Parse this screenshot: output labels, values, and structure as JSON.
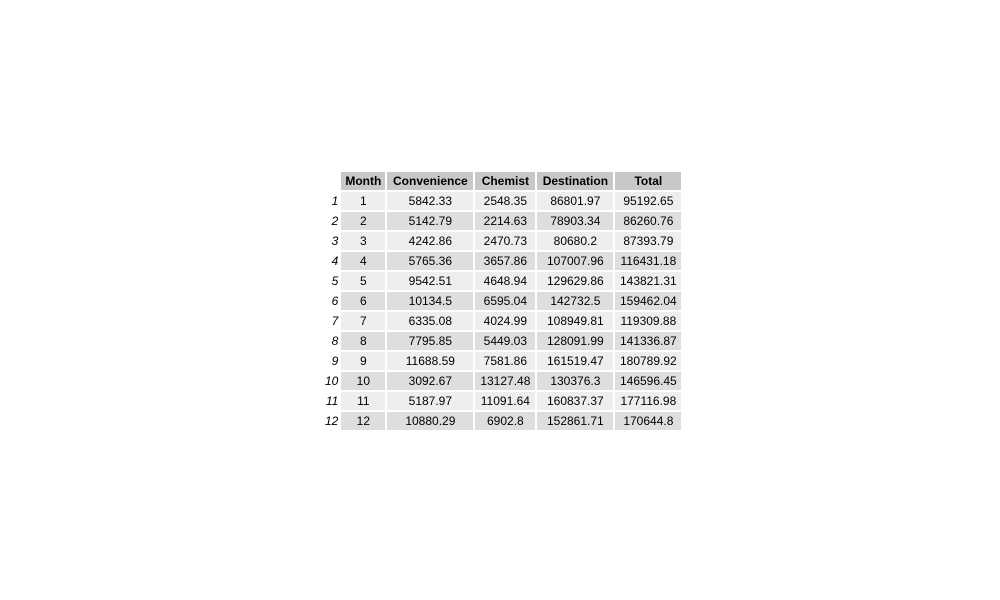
{
  "chart_data": {
    "type": "table",
    "columns": [
      "Month",
      "Convenience",
      "Chemist",
      "Destination",
      "Total"
    ],
    "row_names": [
      "1",
      "2",
      "3",
      "4",
      "5",
      "6",
      "7",
      "8",
      "9",
      "10",
      "11",
      "12"
    ],
    "rows": [
      [
        "1",
        "5842.33",
        "2548.35",
        "86801.97",
        "95192.65"
      ],
      [
        "2",
        "5142.79",
        "2214.63",
        "78903.34",
        "86260.76"
      ],
      [
        "3",
        "4242.86",
        "2470.73",
        "80680.2",
        "87393.79"
      ],
      [
        "4",
        "5765.36",
        "3657.86",
        "107007.96",
        "116431.18"
      ],
      [
        "5",
        "9542.51",
        "4648.94",
        "129629.86",
        "143821.31"
      ],
      [
        "6",
        "10134.5",
        "6595.04",
        "142732.5",
        "159462.04"
      ],
      [
        "7",
        "6335.08",
        "4024.99",
        "108949.81",
        "119309.88"
      ],
      [
        "8",
        "7795.85",
        "5449.03",
        "128091.99",
        "141336.87"
      ],
      [
        "9",
        "11688.59",
        "7581.86",
        "161519.47",
        "180789.92"
      ],
      [
        "10",
        "3092.67",
        "13127.48",
        "130376.3",
        "146596.45"
      ],
      [
        "11",
        "5187.97",
        "11091.64",
        "160837.37",
        "177116.98"
      ],
      [
        "12",
        "10880.29",
        "6902.8",
        "152861.71",
        "170644.8"
      ]
    ],
    "colors": {
      "header_bg": "#c8c8c8",
      "row_light": "#eeeeee",
      "row_dark": "#dedede"
    }
  }
}
